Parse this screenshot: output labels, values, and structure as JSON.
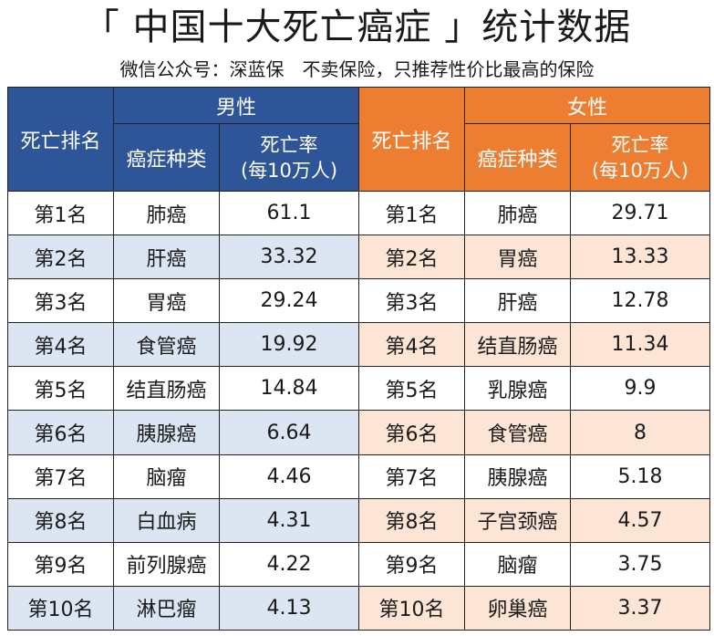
{
  "title": "「 中国十大死亡癌症 」统计数据",
  "subtitle": "微信公众号：深蓝保　不卖保险，只推荐性价比最高的保险",
  "headers": {
    "rank": "死亡排名",
    "male": "男性",
    "female": "女性",
    "cancer_type": "癌症种类",
    "rate_line1": "死亡率",
    "rate_line2": "(每10万人)"
  },
  "colors": {
    "male_header": "#2e5597",
    "female_header": "#ed7d31",
    "male_alt_row": "#dce6f2",
    "female_alt_row": "#fde5d6"
  },
  "rows": [
    {
      "rank": "第1名",
      "male_cancer": "肺癌",
      "male_rate": "61.1",
      "female_rank": "第1名",
      "female_cancer": "肺癌",
      "female_rate": "29.71"
    },
    {
      "rank": "第2名",
      "male_cancer": "肝癌",
      "male_rate": "33.32",
      "female_rank": "第2名",
      "female_cancer": "胃癌",
      "female_rate": "13.33"
    },
    {
      "rank": "第3名",
      "male_cancer": "胃癌",
      "male_rate": "29.24",
      "female_rank": "第3名",
      "female_cancer": "肝癌",
      "female_rate": "12.78"
    },
    {
      "rank": "第4名",
      "male_cancer": "食管癌",
      "male_rate": "19.92",
      "female_rank": "第4名",
      "female_cancer": "结直肠癌",
      "female_rate": "11.34"
    },
    {
      "rank": "第5名",
      "male_cancer": "结直肠癌",
      "male_rate": "14.84",
      "female_rank": "第5名",
      "female_cancer": "乳腺癌",
      "female_rate": "9.9"
    },
    {
      "rank": "第6名",
      "male_cancer": "胰腺癌",
      "male_rate": "6.64",
      "female_rank": "第6名",
      "female_cancer": "食管癌",
      "female_rate": "8"
    },
    {
      "rank": "第7名",
      "male_cancer": "脑瘤",
      "male_rate": "4.46",
      "female_rank": "第7名",
      "female_cancer": "胰腺癌",
      "female_rate": "5.18"
    },
    {
      "rank": "第8名",
      "male_cancer": "白血病",
      "male_rate": "4.31",
      "female_rank": "第8名",
      "female_cancer": "子宫颈癌",
      "female_rate": "4.57"
    },
    {
      "rank": "第9名",
      "male_cancer": "前列腺癌",
      "male_rate": "4.22",
      "female_rank": "第9名",
      "female_cancer": "脑瘤",
      "female_rate": "3.75"
    },
    {
      "rank": "第10名",
      "male_cancer": "淋巴瘤",
      "male_rate": "4.13",
      "female_rank": "第10名",
      "female_cancer": "卵巢癌",
      "female_rate": "3.37"
    }
  ]
}
